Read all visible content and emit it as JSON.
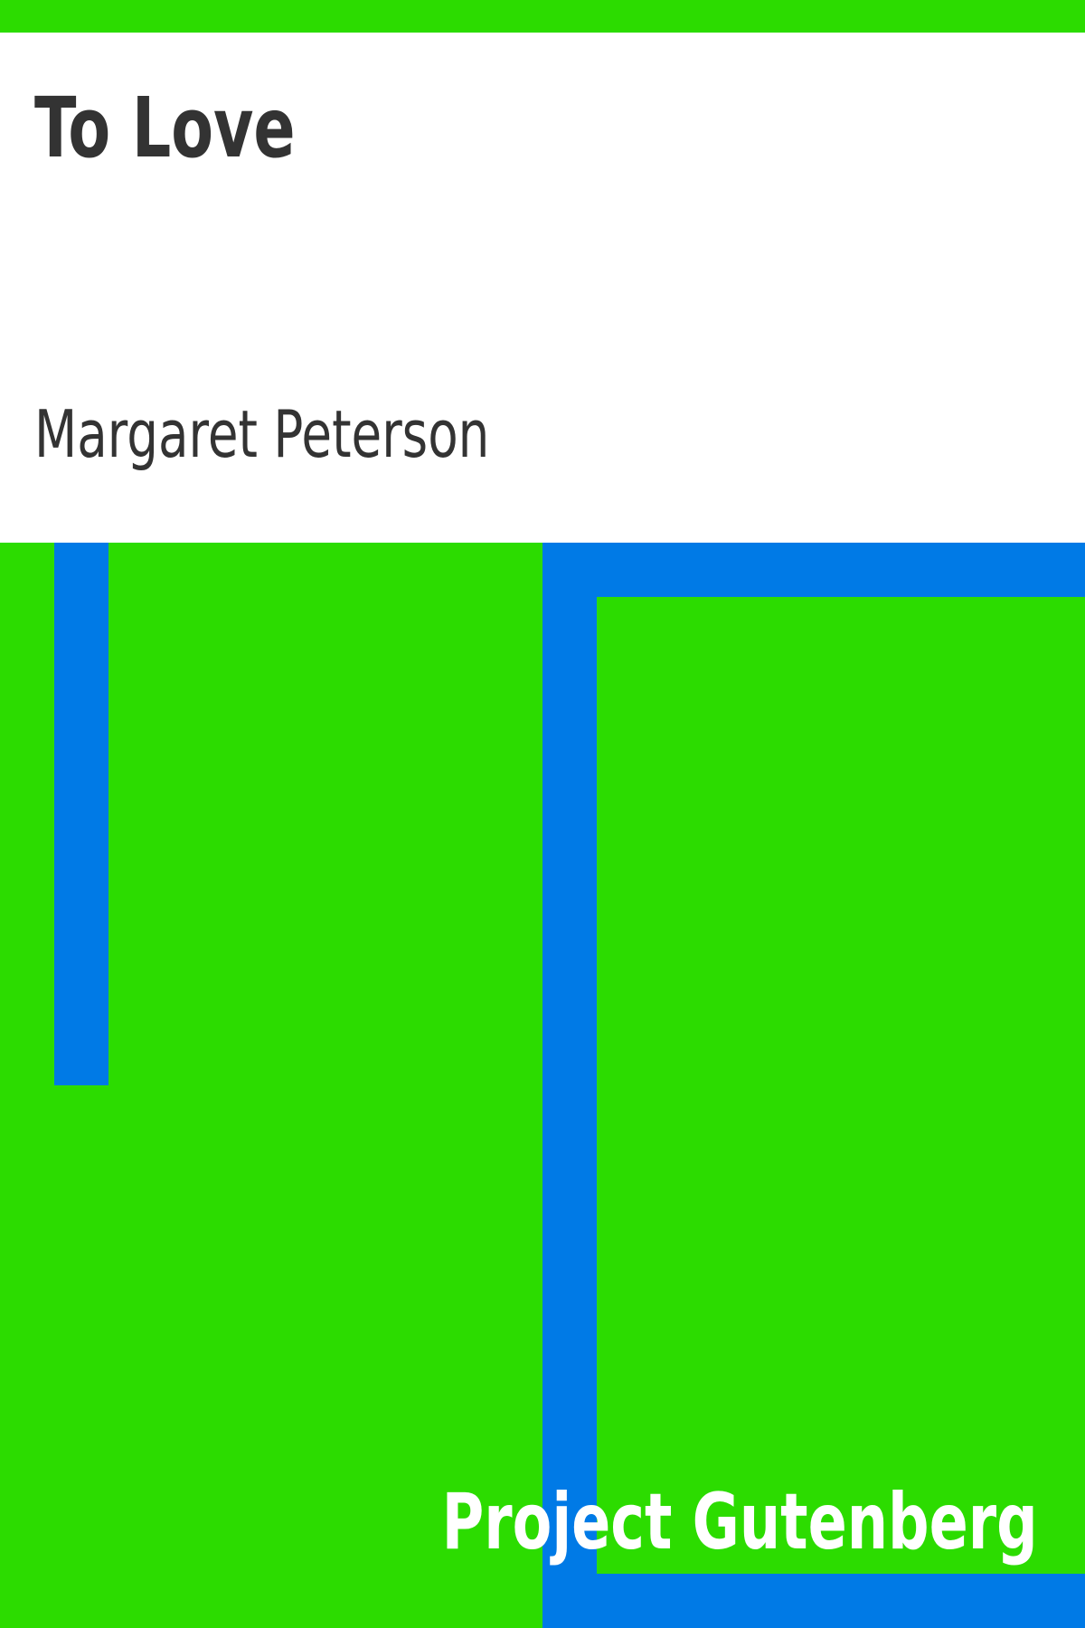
{
  "cover": {
    "title": "To Love",
    "author": "Margaret Peterson",
    "publisher": "Project Gutenberg"
  },
  "colors": {
    "green": "#2cdc00",
    "blue": "#007ae6",
    "white": "#ffffff",
    "text": "#333333"
  }
}
